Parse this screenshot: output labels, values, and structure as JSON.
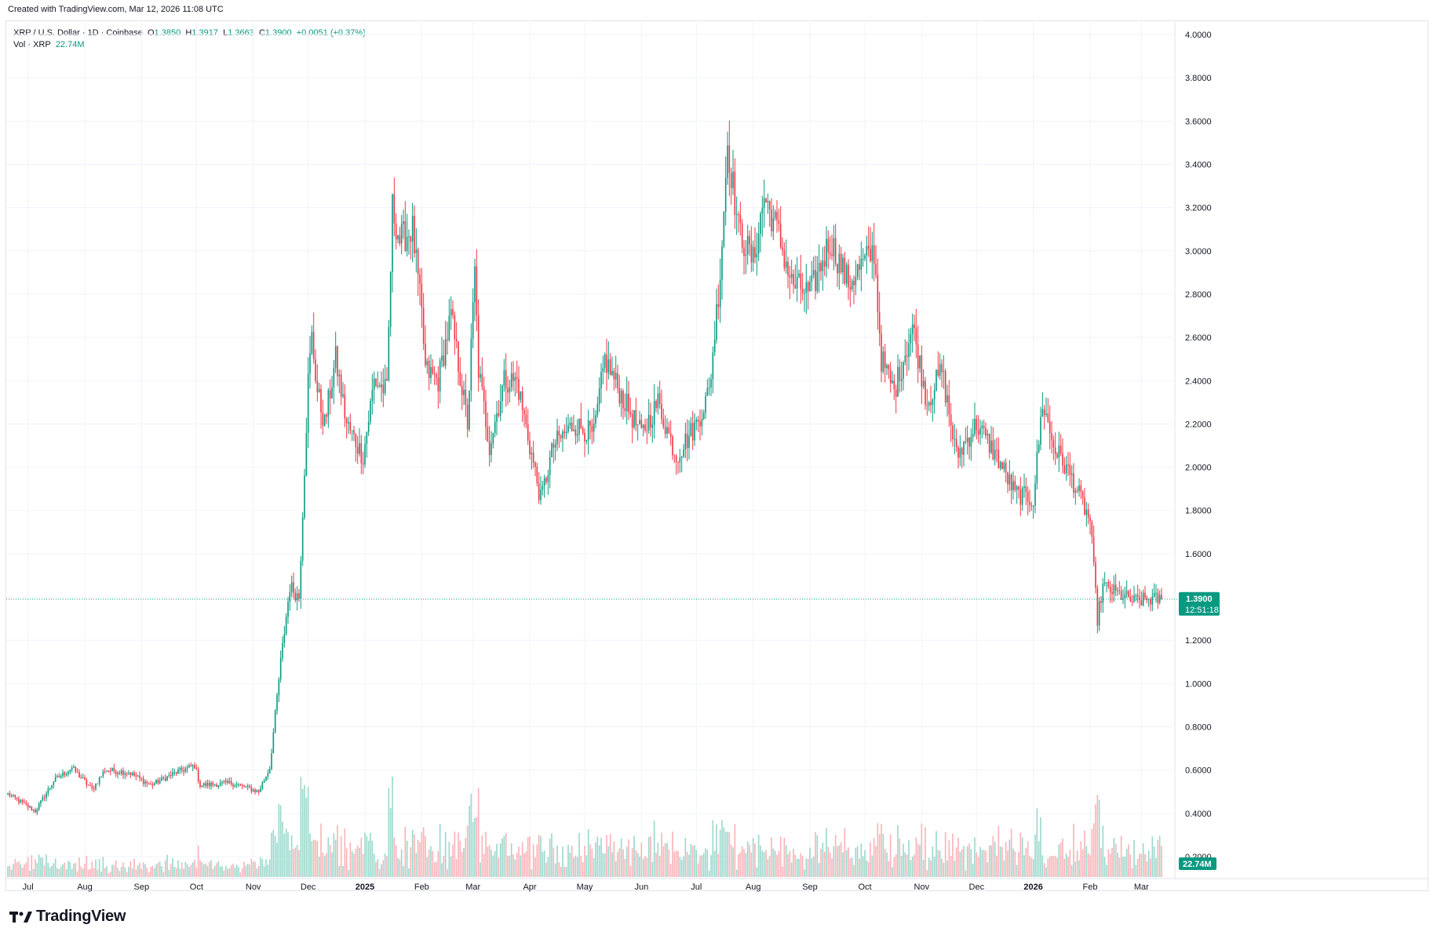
{
  "header": {
    "created_text": "Created with TradingView.com, Mar 12, 2026 11:08 UTC"
  },
  "legend": {
    "symbol": "XRP / U.S. Dollar · 1D · Coinbase",
    "open_label": "O",
    "open": "1.3850",
    "high_label": "H",
    "high": "1.3917",
    "low_label": "L",
    "low": "1.3663",
    "close_label": "C",
    "close": "1.3900",
    "change": "+0.0051 (+0.37%)",
    "vol_label": "Vol · XRP",
    "vol": "22.74M"
  },
  "price_tag": {
    "price": "1.3900",
    "countdown": "12:51:18"
  },
  "vol_tag": "22.74M",
  "brand": {
    "name": "TradingView"
  },
  "colors": {
    "up": "#089981",
    "down": "#f23645",
    "grid": "#f0f3fa",
    "axis_text": "#131722"
  },
  "chart_data": {
    "type": "candlestick",
    "title": "XRP / U.S. Dollar · 1D · Coinbase",
    "y_ticks": [
      "4.0000",
      "3.8000",
      "3.6000",
      "3.4000",
      "3.2000",
      "3.0000",
      "2.8000",
      "2.6000",
      "2.4000",
      "2.2000",
      "2.0000",
      "1.8000",
      "1.6000",
      "1.4000",
      "1.2000",
      "1.0000",
      "0.8000",
      "0.6000",
      "0.4000",
      "0.2000"
    ],
    "y_range": [
      0.15,
      4.05
    ],
    "x_labels": [
      "Jul",
      "Aug",
      "Sep",
      "Oct",
      "Nov",
      "Dec",
      "2025",
      "Feb",
      "Mar",
      "Apr",
      "May",
      "Jun",
      "Jul",
      "Aug",
      "Sep",
      "Oct",
      "Nov",
      "Dec",
      "2026",
      "Feb",
      "Mar"
    ],
    "x_range": [
      "2024-06-20",
      "2026-03-12"
    ],
    "last_price": 1.39,
    "price_path": [
      [
        "2024-06-20",
        0.49
      ],
      [
        "2024-07-05",
        0.41
      ],
      [
        "2024-07-15",
        0.55
      ],
      [
        "2024-07-25",
        0.61
      ],
      [
        "2024-08-05",
        0.51
      ],
      [
        "2024-08-12",
        0.6
      ],
      [
        "2024-08-25",
        0.59
      ],
      [
        "2024-09-06",
        0.53
      ],
      [
        "2024-09-20",
        0.59
      ],
      [
        "2024-09-30",
        0.62
      ],
      [
        "2024-10-03",
        0.53
      ],
      [
        "2024-10-20",
        0.54
      ],
      [
        "2024-11-04",
        0.5
      ],
      [
        "2024-11-10",
        0.61
      ],
      [
        "2024-11-16",
        1.1
      ],
      [
        "2024-11-21",
        1.45
      ],
      [
        "2024-11-26",
        1.4
      ],
      [
        "2024-12-01",
        2.4
      ],
      [
        "2024-12-03",
        2.6
      ],
      [
        "2024-12-06",
        2.35
      ],
      [
        "2024-12-10",
        2.2
      ],
      [
        "2024-12-16",
        2.5
      ],
      [
        "2024-12-22",
        2.2
      ],
      [
        "2024-12-31",
        2.05
      ],
      [
        "2025-01-06",
        2.4
      ],
      [
        "2025-01-13",
        2.35
      ],
      [
        "2025-01-16",
        3.2
      ],
      [
        "2025-01-20",
        3.05
      ],
      [
        "2025-01-27",
        3.1
      ],
      [
        "2025-02-01",
        2.7
      ],
      [
        "2025-02-03",
        2.45
      ],
      [
        "2025-02-10",
        2.4
      ],
      [
        "2025-02-17",
        2.7
      ],
      [
        "2025-02-26",
        2.2
      ],
      [
        "2025-03-02",
        2.9
      ],
      [
        "2025-03-04",
        2.45
      ],
      [
        "2025-03-10",
        2.1
      ],
      [
        "2025-03-18",
        2.4
      ],
      [
        "2025-03-25",
        2.4
      ],
      [
        "2025-04-01",
        2.1
      ],
      [
        "2025-04-07",
        1.85
      ],
      [
        "2025-04-14",
        2.1
      ],
      [
        "2025-04-25",
        2.2
      ],
      [
        "2025-05-06",
        2.15
      ],
      [
        "2025-05-12",
        2.5
      ],
      [
        "2025-05-20",
        2.35
      ],
      [
        "2025-06-01",
        2.15
      ],
      [
        "2025-06-10",
        2.3
      ],
      [
        "2025-06-20",
        2.05
      ],
      [
        "2025-07-01",
        2.2
      ],
      [
        "2025-07-08",
        2.35
      ],
      [
        "2025-07-14",
        2.9
      ],
      [
        "2025-07-18",
        3.5
      ],
      [
        "2025-07-24",
        3.1
      ],
      [
        "2025-08-01",
        2.95
      ],
      [
        "2025-08-07",
        3.25
      ],
      [
        "2025-08-14",
        3.1
      ],
      [
        "2025-08-22",
        2.85
      ],
      [
        "2025-09-01",
        2.8
      ],
      [
        "2025-09-12",
        3.05
      ],
      [
        "2025-09-22",
        2.85
      ],
      [
        "2025-10-01",
        2.95
      ],
      [
        "2025-10-06",
        3.0
      ],
      [
        "2025-10-10",
        2.5
      ],
      [
        "2025-10-17",
        2.35
      ],
      [
        "2025-10-27",
        2.65
      ],
      [
        "2025-11-04",
        2.3
      ],
      [
        "2025-11-12",
        2.45
      ],
      [
        "2025-11-20",
        2.05
      ],
      [
        "2025-12-01",
        2.2
      ],
      [
        "2025-12-12",
        2.05
      ],
      [
        "2025-12-22",
        1.88
      ],
      [
        "2026-01-01",
        1.85
      ],
      [
        "2026-01-06",
        2.3
      ],
      [
        "2026-01-12",
        2.1
      ],
      [
        "2026-01-22",
        1.95
      ],
      [
        "2026-02-01",
        1.75
      ],
      [
        "2026-02-05",
        1.3
      ],
      [
        "2026-02-08",
        1.45
      ],
      [
        "2026-02-15",
        1.42
      ],
      [
        "2026-02-25",
        1.38
      ],
      [
        "2026-03-05",
        1.39
      ],
      [
        "2026-03-12",
        1.39
      ]
    ]
  }
}
